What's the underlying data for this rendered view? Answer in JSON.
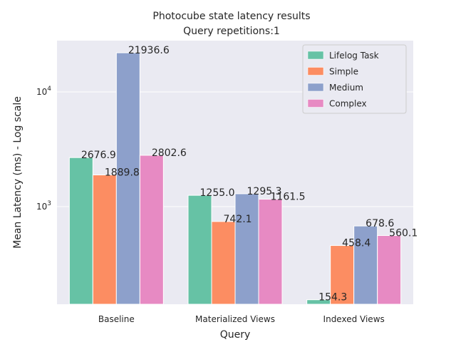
{
  "chart_data": {
    "type": "bar",
    "title": [
      "Photocube state latency results",
      "Query repetitions:1"
    ],
    "xlabel": "Query",
    "ylabel": "Mean Latency (ms) - Log scale",
    "yscale": "log",
    "ylim": [
      141,
      28000
    ],
    "yticks": [
      {
        "value": 1000,
        "label": "10^3"
      },
      {
        "value": 10000,
        "label": "10^4"
      }
    ],
    "grid": true,
    "legend_position": "top-right",
    "categories": [
      "Baseline",
      "Materialized Views",
      "Indexed Views"
    ],
    "series": [
      {
        "name": "Lifelog Task",
        "color": "#66c2a5",
        "values": [
          2676.9,
          1255.0,
          154.3
        ]
      },
      {
        "name": "Simple",
        "color": "#fc8d62",
        "values": [
          1889.8,
          742.1,
          458.4
        ]
      },
      {
        "name": "Medium",
        "color": "#8da0cb",
        "values": [
          21936.6,
          1295.3,
          678.6
        ]
      },
      {
        "name": "Complex",
        "color": "#e78ac3",
        "values": [
          2802.6,
          1161.5,
          560.1
        ]
      }
    ],
    "value_labels": [
      [
        "2676.9",
        "1255.0",
        "154.3"
      ],
      [
        "1889.8",
        "742.1",
        "458.4"
      ],
      [
        "21936.6",
        "1295.3",
        "678.6"
      ],
      [
        "2802.6",
        "1161.5",
        "560.1"
      ]
    ]
  }
}
